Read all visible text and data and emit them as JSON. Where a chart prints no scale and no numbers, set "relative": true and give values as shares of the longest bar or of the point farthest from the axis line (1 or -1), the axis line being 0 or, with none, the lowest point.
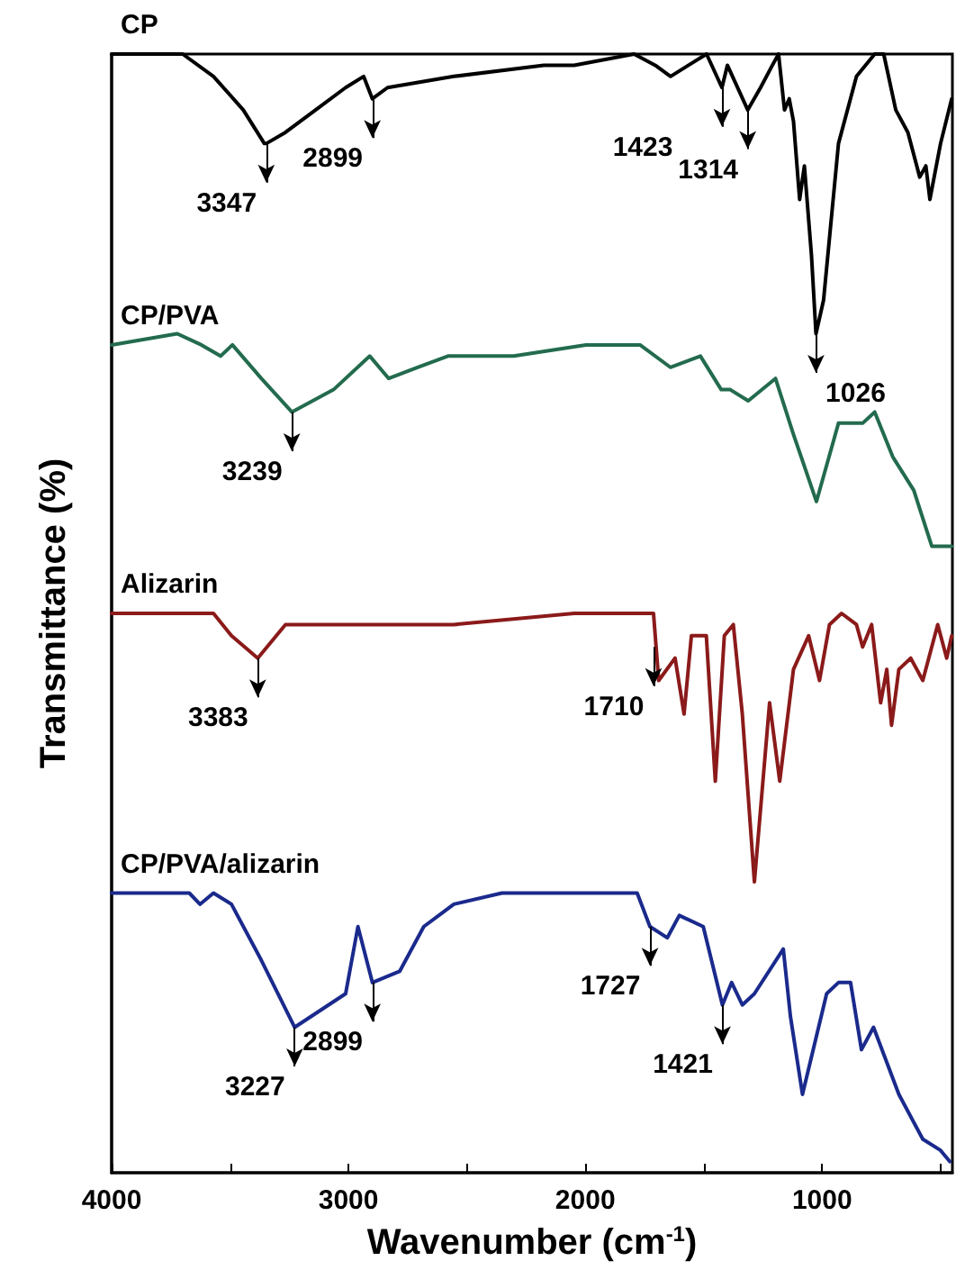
{
  "chart_data": {
    "type": "line",
    "xlabel": "Wavenumber (cm$^{-1}$)",
    "ylabel": "Transmittance (%)",
    "relative": true,
    "xlim": [
      4000,
      450
    ],
    "xticks": [
      4000,
      {
        "value": 3500,
        "label": null
      },
      3000,
      {
        "value": 2500,
        "label": null
      },
      2000,
      {
        "value": 1500,
        "label": null
      },
      1000,
      {
        "value": 500,
        "label": null
      }
    ],
    "grid": false,
    "legend": false,
    "marker": "none",
    "line_style": "solid",
    "series": [
      {
        "name": "CP",
        "color": "#000000",
        "x": [
          4000,
          3700,
          3570,
          3444,
          3355,
          3347,
          3266,
          3139,
          3012,
          2936,
          2899,
          2835,
          2555,
          2175,
          2047,
          1794,
          1705,
          1640,
          1564,
          1488,
          1423,
          1400,
          1314,
          1260,
          1210,
          1184,
          1159,
          1139,
          1121,
          1095,
          1075,
          1045,
          1026,
          994,
          931,
          855,
          778,
          740,
          689,
          638,
          588,
          562,
          545,
          500,
          453
        ],
        "values": [
          1.0,
          1.0,
          0.98,
          0.95,
          0.92,
          0.92,
          0.93,
          0.95,
          0.97,
          0.98,
          0.96,
          0.97,
          0.98,
          0.99,
          0.99,
          1.0,
          0.99,
          0.98,
          0.99,
          1.0,
          0.97,
          0.99,
          0.95,
          0.97,
          0.99,
          1.0,
          0.95,
          0.96,
          0.94,
          0.87,
          0.9,
          0.82,
          0.75,
          0.78,
          0.92,
          0.98,
          1.0,
          1.0,
          0.95,
          0.93,
          0.89,
          0.9,
          0.87,
          0.92,
          0.96
        ]
      },
      {
        "name": "CP/PVA",
        "color": "#236b4e",
        "x": [
          4000,
          3723,
          3621,
          3540,
          3490,
          3368,
          3239,
          3063,
          2910,
          2830,
          2708,
          2580,
          2302,
          1997,
          1769,
          1641,
          1514,
          1426,
          1388,
          1312,
          1197,
          1121,
          1024,
          931,
          867,
          829,
          778,
          702,
          613,
          537,
          453
        ],
        "values": [
          0.74,
          0.75,
          0.74,
          0.73,
          0.74,
          0.71,
          0.68,
          0.7,
          0.73,
          0.71,
          0.72,
          0.73,
          0.73,
          0.74,
          0.74,
          0.72,
          0.73,
          0.7,
          0.7,
          0.69,
          0.71,
          0.66,
          0.6,
          0.67,
          0.67,
          0.67,
          0.68,
          0.64,
          0.61,
          0.56,
          0.56
        ]
      },
      {
        "name": "Alizarin",
        "color": "#8b1a1a",
        "x": [
          4000,
          3570,
          3494,
          3383,
          3266,
          3114,
          2555,
          2047,
          1712,
          1690,
          1621,
          1583,
          1552,
          1489,
          1451,
          1413,
          1375,
          1337,
          1286,
          1222,
          1179,
          1121,
          1057,
          1011,
          969,
          918,
          855,
          829,
          791,
          753,
          727,
          707,
          676,
          626,
          575,
          512,
          474,
          453
        ],
        "values": [
          0.5,
          0.5,
          0.48,
          0.46,
          0.49,
          0.49,
          0.49,
          0.5,
          0.5,
          0.44,
          0.46,
          0.41,
          0.48,
          0.48,
          0.35,
          0.48,
          0.49,
          0.41,
          0.26,
          0.42,
          0.35,
          0.45,
          0.48,
          0.44,
          0.49,
          0.5,
          0.49,
          0.47,
          0.49,
          0.42,
          0.45,
          0.4,
          0.45,
          0.46,
          0.44,
          0.49,
          0.46,
          0.48
        ]
      },
      {
        "name": "CP/PVA/alizarin",
        "color": "#1a2a8c",
        "x": [
          4000,
          3672,
          3627,
          3570,
          3494,
          3368,
          3227,
          3012,
          2960,
          2899,
          2784,
          2682,
          2555,
          2352,
          1997,
          1781,
          1727,
          1654,
          1603,
          1502,
          1421,
          1382,
          1337,
          1286,
          1164,
          1134,
          1083,
          981,
          931,
          880,
          834,
          783,
          676,
          575,
          500,
          461
        ],
        "values": [
          0.25,
          0.25,
          0.24,
          0.25,
          0.24,
          0.19,
          0.13,
          0.16,
          0.22,
          0.17,
          0.18,
          0.22,
          0.24,
          0.25,
          0.25,
          0.25,
          0.22,
          0.21,
          0.23,
          0.22,
          0.15,
          0.17,
          0.15,
          0.16,
          0.2,
          0.14,
          0.07,
          0.16,
          0.17,
          0.17,
          0.11,
          0.13,
          0.07,
          0.03,
          0.02,
          0.01
        ]
      }
    ],
    "annotations": [
      {
        "text": "3347",
        "x": 3347,
        "y": 0.92
      },
      {
        "text": "2899",
        "x": 2899,
        "y": 0.96
      },
      {
        "text": "1423",
        "x": 1423,
        "y": 0.97
      },
      {
        "text": "1314",
        "x": 1314,
        "y": 0.95
      },
      {
        "text": "1026",
        "x": 1026,
        "y": 0.75
      },
      {
        "text": "3239",
        "x": 3239,
        "y": 0.68
      },
      {
        "text": "3383",
        "x": 3383,
        "y": 0.46
      },
      {
        "text": "1710",
        "x": 1712,
        "y": 0.47
      },
      {
        "text": "3227",
        "x": 3227,
        "y": 0.13
      },
      {
        "text": "2899",
        "x": 2899,
        "y": 0.17
      },
      {
        "text": "1727",
        "x": 1727,
        "y": 0.22
      },
      {
        "text": "1421",
        "x": 1421,
        "y": 0.15
      }
    ]
  }
}
